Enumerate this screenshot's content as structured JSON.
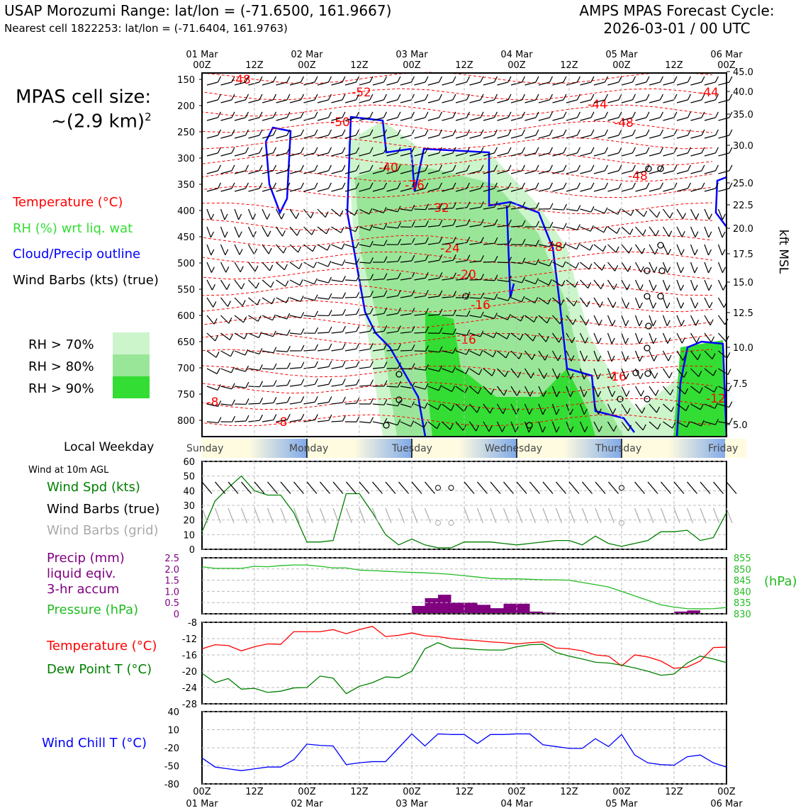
{
  "header": {
    "title": "USAP Morozumi Range: lat/lon = (-71.6500, 161.9667)",
    "subtitle": "Nearest cell 1822253: lat/lon = (-71.6404, 161.9763)",
    "forecast_line1": "AMPS MPAS Forecast Cycle:",
    "forecast_line2": "2026-03-01 / 00 UTC"
  },
  "left_panel": {
    "cell_size_line1": "MPAS cell size:",
    "cell_size_line2": "~(2.9 km)",
    "cell_size_sup": "2",
    "legend": [
      {
        "text": "Temperature (°C)",
        "color": "#ff0000"
      },
      {
        "text": "RH (%) wrt liq. wat",
        "color": "#33dd33"
      },
      {
        "text": "Cloud/Precip outline",
        "color": "#0000ff"
      },
      {
        "text": "Wind Barbs (kts) (true)",
        "color": "#000000"
      }
    ],
    "rh_legend": [
      {
        "text": "RH > 70%",
        "color": "#ccf5cc"
      },
      {
        "text": "RH > 80%",
        "color": "#99e699"
      },
      {
        "text": "RH > 90%",
        "color": "#33dd33"
      }
    ],
    "weekday_label": "Local Weekday",
    "wind_title": "Wind at 10m AGL",
    "wind_legend": [
      {
        "text": "Wind Spd (kts)",
        "color": "#008000"
      },
      {
        "text": "Wind Barbs (true)",
        "color": "#000000"
      },
      {
        "text": "Wind Barbs (grid)",
        "color": "#aaaaaa"
      }
    ],
    "precip_legend": [
      {
        "text": "Precip (mm)",
        "color": "#800080"
      },
      {
        "text": "liquid eqiv.",
        "color": "#800080"
      },
      {
        "text": "3-hr accum",
        "color": "#800080"
      },
      {
        "text": "Pressure (hPa)",
        "color": "#22bb22"
      }
    ],
    "temp_legend": [
      {
        "text": "Temperature (°C)",
        "color": "#ff0000"
      },
      {
        "text": "Dew Point T (°C)",
        "color": "#008000"
      }
    ],
    "windchill_legend": {
      "text": "Wind Chill T (°C)",
      "color": "#0000ff"
    }
  },
  "time_axis": {
    "top_dates": [
      "01 Mar",
      "02 Mar",
      "03 Mar",
      "04 Mar",
      "05 Mar",
      "06 Mar"
    ],
    "hour_labels": [
      "00Z",
      "12Z",
      "00Z",
      "12Z",
      "00Z",
      "12Z",
      "00Z",
      "12Z",
      "00Z",
      "12Z",
      "00Z"
    ],
    "weekdays": [
      "Sunday",
      "Monday",
      "Tuesday",
      "Wednesday",
      "Thursday",
      "Friday"
    ]
  },
  "chart_data": [
    {
      "type": "contour",
      "name": "cross-section",
      "y_pressure_ticks": [
        150,
        200,
        250,
        300,
        350,
        400,
        450,
        500,
        550,
        600,
        650,
        700,
        750,
        800
      ],
      "ylabel_right": "kft MSL",
      "y_right_ticks": [
        "45.0",
        "40.0",
        "35.0",
        "30.0",
        "25.0",
        "22.5",
        "20.0",
        "17.5",
        "15.0",
        "12.5",
        "10.0",
        "7.5",
        "5.0"
      ],
      "temperature_labels": [
        "-48",
        "-52",
        "-50",
        "-44",
        "-48",
        "-48",
        "-44",
        "-40",
        "-36",
        "-32",
        "-28",
        "-24",
        "-20",
        "-16",
        "-16",
        "-16",
        "-12",
        "-8",
        "-8"
      ]
    },
    {
      "type": "line",
      "name": "wind-speed",
      "ylim": [
        0,
        60
      ],
      "yticks": [
        0,
        10,
        20,
        30,
        40,
        50,
        60
      ],
      "x_hours": [
        0,
        3,
        6,
        9,
        12,
        15,
        18,
        21,
        24,
        27,
        30,
        33,
        36,
        39,
        42,
        45,
        48,
        51,
        54,
        57,
        60,
        63,
        66,
        69,
        72,
        75,
        78,
        81,
        84,
        87,
        90,
        93,
        96,
        99,
        102,
        105,
        108,
        111,
        114,
        117,
        120
      ],
      "values": [
        12,
        33,
        42,
        50,
        40,
        37,
        37,
        25,
        5,
        5,
        6,
        38,
        38,
        25,
        10,
        3,
        7,
        3,
        1,
        1,
        5,
        5,
        5,
        4,
        3,
        4,
        5,
        6,
        6,
        3,
        9,
        4,
        2,
        4,
        6,
        12,
        12,
        13,
        6,
        8,
        25
      ]
    },
    {
      "type": "bar+line",
      "name": "precip-pressure",
      "precip_ylim": [
        0,
        2.5
      ],
      "precip_yticks": [
        "0",
        "0.5",
        "1.0",
        "1.5",
        "2.0",
        "2.5"
      ],
      "pressure_ylim": [
        830,
        855
      ],
      "pressure_yticks": [
        "855",
        "850",
        "845",
        "840",
        "835",
        "830"
      ],
      "pressure_unit": "(hPa)",
      "precip_x_hours": [
        51,
        54,
        57,
        60,
        63,
        66,
        69,
        72,
        75,
        78,
        81,
        84,
        111,
        114
      ],
      "precip_values": [
        0.35,
        0.7,
        0.85,
        0.5,
        0.5,
        0.4,
        0.25,
        0.45,
        0.45,
        0.1,
        0.05,
        0,
        0.1,
        0.15
      ],
      "pressure_x_hours": [
        0,
        3,
        6,
        9,
        12,
        15,
        18,
        21,
        24,
        27,
        30,
        33,
        36,
        39,
        42,
        45,
        48,
        51,
        54,
        57,
        60,
        63,
        66,
        69,
        72,
        75,
        78,
        81,
        84,
        87,
        90,
        93,
        96,
        99,
        102,
        105,
        108,
        111,
        114,
        117,
        120
      ],
      "pressure_values": [
        851,
        850.3,
        850.3,
        850.3,
        851.2,
        851,
        851.5,
        851.8,
        851.8,
        851.2,
        850.5,
        850.5,
        849.5,
        849.3,
        849,
        848.7,
        848.5,
        848.3,
        848,
        847.6,
        847,
        846.4,
        845.8,
        845.6,
        845.6,
        845.4,
        845.2,
        845.2,
        845,
        844,
        843,
        842,
        840,
        838,
        836,
        834,
        833,
        832.3,
        832.2,
        832.3,
        832.8
      ]
    },
    {
      "type": "line",
      "name": "temperature-dewpoint",
      "ylim": [
        -28,
        -8
      ],
      "yticks": [
        -8,
        -12,
        -16,
        -20,
        -24,
        -28
      ],
      "x_hours": [
        0,
        3,
        6,
        9,
        12,
        15,
        18,
        21,
        24,
        27,
        30,
        33,
        36,
        39,
        42,
        45,
        48,
        51,
        54,
        57,
        60,
        63,
        66,
        69,
        72,
        75,
        78,
        81,
        84,
        87,
        90,
        93,
        96,
        99,
        102,
        105,
        108,
        111,
        114,
        117,
        120
      ],
      "series": [
        {
          "name": "Temperature (°C)",
          "color": "#ff0000",
          "values": [
            -14.5,
            -13.5,
            -13.7,
            -15,
            -14,
            -13.3,
            -13.4,
            -10.3,
            -10.3,
            -10.3,
            -9.8,
            -10.8,
            -9.8,
            -9,
            -11.5,
            -11.2,
            -10.6,
            -11.3,
            -11.5,
            -12,
            -12.3,
            -12.5,
            -12.8,
            -13,
            -13.3,
            -13,
            -12.8,
            -14.3,
            -14.5,
            -15,
            -16,
            -16.3,
            -18.7,
            -16,
            -16.5,
            -17.5,
            -19.3,
            -19,
            -17.5,
            -14.2,
            -14.1
          ]
        },
        {
          "name": "Dew Point T (°C)",
          "color": "#008000",
          "values": [
            -20.5,
            -22.8,
            -21.8,
            -24.4,
            -24.2,
            -25.2,
            -24.9,
            -24.1,
            -24,
            -21.2,
            -21.7,
            -25.5,
            -23.7,
            -22.8,
            -21.4,
            -21.6,
            -20,
            -14.5,
            -13,
            -14.3,
            -14.4,
            -14.7,
            -14.8,
            -14.8,
            -14,
            -13.5,
            -13.4,
            -15.4,
            -16.3,
            -17,
            -17.8,
            -18,
            -18.5,
            -19.2,
            -20,
            -21,
            -20.7,
            -18,
            -16.3,
            -17,
            -17.9
          ]
        }
      ]
    },
    {
      "type": "line",
      "name": "wind-chill",
      "ylim": [
        -80,
        40
      ],
      "yticks": [
        "40",
        "10",
        "-20",
        "-50",
        "-80"
      ],
      "x_hours": [
        0,
        3,
        6,
        9,
        12,
        15,
        18,
        21,
        24,
        27,
        30,
        33,
        36,
        39,
        42,
        45,
        48,
        51,
        54,
        57,
        60,
        63,
        66,
        69,
        72,
        75,
        78,
        81,
        84,
        87,
        90,
        93,
        96,
        99,
        102,
        105,
        108,
        111,
        114,
        117,
        120
      ],
      "values": [
        -37,
        -52,
        -55,
        -58,
        -55,
        -52,
        -52,
        -40,
        -14,
        -16,
        -17,
        -48,
        -45,
        -43,
        -43,
        -20,
        3,
        -17,
        3,
        2,
        2,
        -13,
        2,
        2,
        3,
        3,
        -15,
        -18,
        -21,
        -21,
        -5,
        -18,
        2,
        -32,
        -45,
        -48,
        -49,
        -35,
        -32,
        -45,
        -52
      ]
    }
  ]
}
